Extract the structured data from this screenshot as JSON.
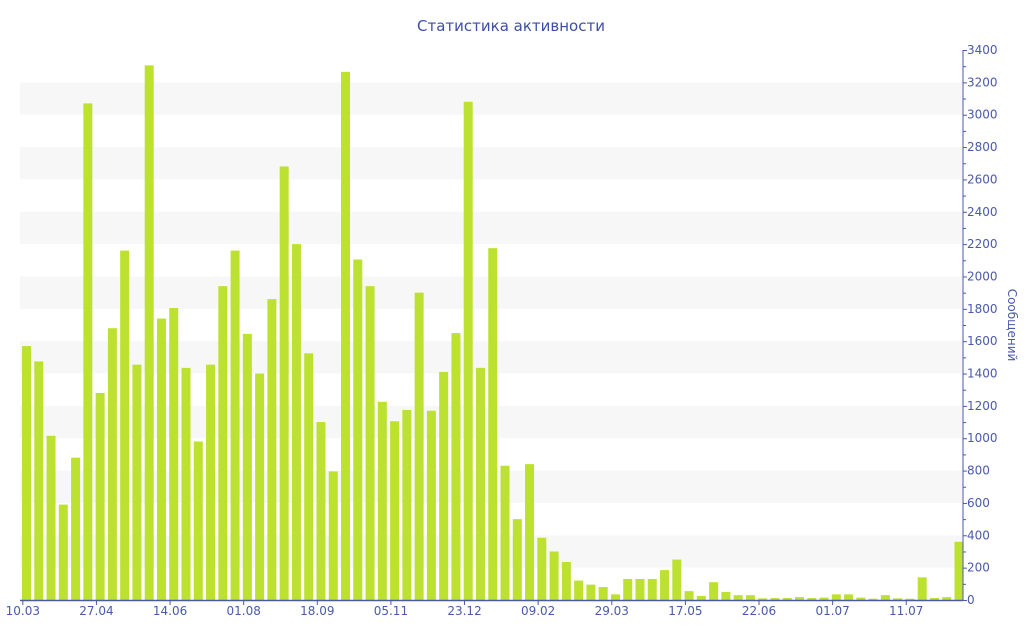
{
  "chart_data": {
    "type": "bar",
    "title": "Статистика активности",
    "xlabel": "",
    "ylabel": "Сообщений",
    "ylim": [
      0,
      3400
    ],
    "yticks": [
      0,
      200,
      400,
      600,
      800,
      1000,
      1200,
      1400,
      1600,
      1800,
      2000,
      2200,
      2400,
      2600,
      2800,
      3000,
      3200,
      3400
    ],
    "y_axis_position": "right",
    "grid": "alternating horizontal bands",
    "xtick_labels": [
      "10.03",
      "27.04",
      "14.06",
      "01.08",
      "18.09",
      "05.11",
      "23.12",
      "09.02",
      "29.03",
      "17.05",
      "22.06",
      "01.07",
      "11.07"
    ],
    "xtick_every_n_bars": 6,
    "bar_color": "#bde131",
    "axis_color": "#4a5aa8",
    "band_color": "#f7f7f7",
    "values": [
      1570,
      1475,
      1015,
      590,
      880,
      3070,
      1280,
      1680,
      2160,
      1455,
      3305,
      1740,
      1805,
      1435,
      980,
      1455,
      1940,
      2160,
      1645,
      1400,
      1860,
      2680,
      2200,
      1525,
      1100,
      795,
      3265,
      2105,
      1940,
      1225,
      1105,
      1175,
      1900,
      1170,
      1410,
      1650,
      3080,
      1435,
      2175,
      830,
      500,
      840,
      385,
      300,
      235,
      120,
      95,
      80,
      35,
      130,
      130,
      130,
      185,
      250,
      55,
      25,
      110,
      50,
      30,
      30,
      10,
      12,
      12,
      18,
      12,
      15,
      35,
      35,
      15,
      8,
      30,
      10,
      8,
      140,
      12,
      18,
      360
    ]
  }
}
